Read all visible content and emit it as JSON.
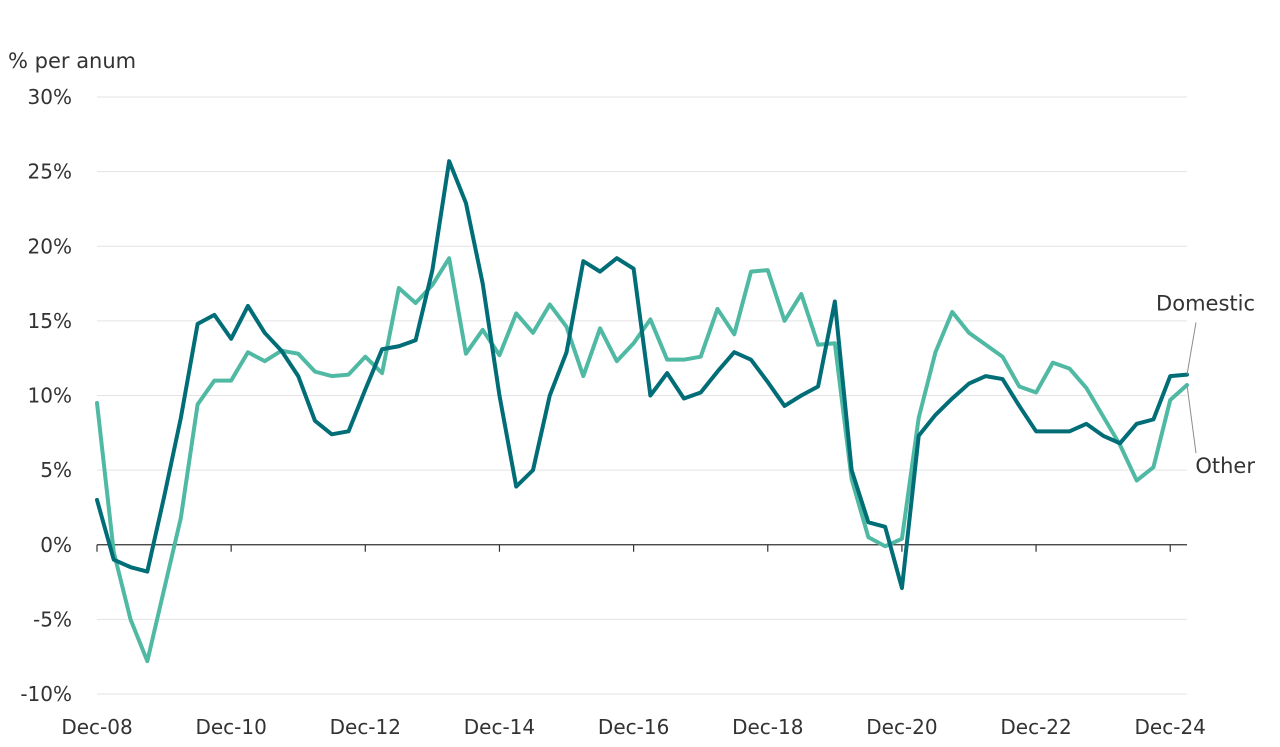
{
  "chart_data": {
    "type": "line",
    "ylabel": "% per anum",
    "ylim": [
      -10,
      30
    ],
    "yticks": [
      -10,
      -5,
      0,
      5,
      10,
      15,
      20,
      25,
      30
    ],
    "ytick_labels": [
      "-10%",
      "-5%",
      "0%",
      "5%",
      "10%",
      "15%",
      "20%",
      "25%",
      "30%"
    ],
    "x_start": 0,
    "x_end": 65,
    "xticks": [
      0,
      8,
      16,
      24,
      32,
      40,
      48,
      56,
      64
    ],
    "xtick_labels": [
      "Dec-08",
      "Dec-10",
      "Dec-12",
      "Dec-14",
      "Dec-16",
      "Dec-18",
      "Dec-20",
      "Dec-22",
      "Dec-24"
    ],
    "series": [
      {
        "name": "Domestic",
        "color": "#006d77",
        "values": [
          3.0,
          -1.0,
          -1.5,
          -1.8,
          3.2,
          8.5,
          14.8,
          15.4,
          13.8,
          16.0,
          14.2,
          13.0,
          11.3,
          8.3,
          7.4,
          7.6,
          10.4,
          13.1,
          13.3,
          13.7,
          18.4,
          25.7,
          22.9,
          17.5,
          10.0,
          3.9,
          5.0,
          10.0,
          12.9,
          19.0,
          18.3,
          19.2,
          18.5,
          10.0,
          11.5,
          9.8,
          10.2,
          11.6,
          12.9,
          12.4,
          10.9,
          9.3,
          10.0,
          10.6,
          16.3,
          5.0,
          1.5,
          1.2,
          -2.9,
          7.3,
          8.7,
          9.8,
          10.8,
          11.3,
          11.1,
          9.3,
          7.6,
          7.6,
          7.6,
          8.1,
          7.3,
          6.8,
          8.1,
          8.4,
          11.3,
          11.4
        ],
        "label_y": 15.7
      },
      {
        "name": "Other",
        "color": "#4fb9a3",
        "values": [
          9.5,
          -0.5,
          -5.0,
          -7.8,
          -3.0,
          1.8,
          9.4,
          11.0,
          11.0,
          12.9,
          12.3,
          13.0,
          12.8,
          11.6,
          11.3,
          11.4,
          12.6,
          11.5,
          17.2,
          16.2,
          17.4,
          19.2,
          12.8,
          14.4,
          12.7,
          15.5,
          14.2,
          16.1,
          14.6,
          11.3,
          14.5,
          12.3,
          13.5,
          15.1,
          12.4,
          12.4,
          12.6,
          15.8,
          14.1,
          18.3,
          18.4,
          15.0,
          16.8,
          13.4,
          13.5,
          4.4,
          0.5,
          -0.1,
          0.4,
          8.5,
          12.9,
          15.6,
          14.2,
          13.4,
          12.6,
          10.6,
          10.2,
          12.2,
          11.8,
          10.5,
          8.6,
          6.7,
          4.3,
          5.2,
          9.7,
          10.7
        ],
        "label_y": 4.8
      }
    ]
  }
}
